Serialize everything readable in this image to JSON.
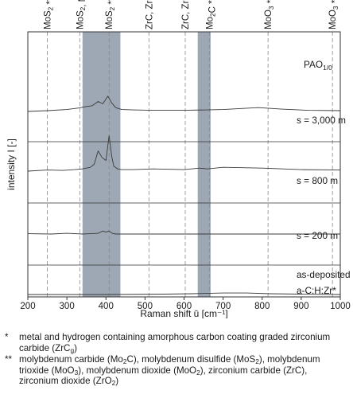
{
  "chart_data": {
    "type": "line",
    "xlabel": "Raman shift ū [cm⁻¹]",
    "ylabel": "intensity I [-]",
    "xlim": [
      200,
      1000
    ],
    "x_ticks": [
      200,
      300,
      400,
      500,
      600,
      700,
      800,
      900,
      1000
    ],
    "x_tick_labels": [
      "200",
      "300",
      "400",
      "500",
      "600",
      "700",
      "800",
      "900",
      "1000"
    ],
    "grid": false,
    "corner_label": "PAO",
    "corner_label_sub": "1/0",
    "shaded_bands": [
      {
        "x": [
          340,
          437
        ],
        "color": "#9ea8b4"
      },
      {
        "x": [
          635,
          668
        ],
        "color": "#9ea8b4"
      }
    ],
    "reference_lines": [
      {
        "x": 250,
        "label": "MoS₂ **"
      },
      {
        "x": 333,
        "label": "MoS₂, Mo₂C **"
      },
      {
        "x": 408,
        "label": "MoS₂ **"
      },
      {
        "x": 510,
        "label": "ZrC, ZrO₂ **"
      },
      {
        "x": 603,
        "label": "ZrC, ZrO₂ **"
      },
      {
        "x": 665,
        "label": "Mo₂C **"
      },
      {
        "x": 815,
        "label": "MoO₃ **"
      },
      {
        "x": 980,
        "label": "MoO₃ **"
      }
    ],
    "series": [
      {
        "name": "s = 3,000 m",
        "x": [
          200,
          250,
          300,
          330,
          350,
          365,
          380,
          392,
          405,
          415,
          425,
          440,
          470,
          520,
          600,
          700,
          790,
          850,
          920,
          1000
        ],
        "y": [
          0.0,
          0.02,
          0.05,
          0.09,
          0.13,
          0.15,
          0.26,
          0.2,
          0.4,
          0.22,
          0.1,
          0.05,
          0.04,
          0.03,
          0.03,
          0.05,
          0.1,
          0.06,
          0.03,
          0.02
        ]
      },
      {
        "name": "s = 800 m",
        "x": [
          200,
          250,
          290,
          320,
          340,
          360,
          370,
          380,
          390,
          400,
          408,
          415,
          420,
          430,
          440,
          470,
          520,
          600,
          640,
          660,
          700,
          800,
          900,
          1000
        ],
        "y": [
          0.02,
          0.05,
          0.04,
          0.06,
          0.08,
          0.12,
          0.2,
          0.55,
          0.38,
          0.3,
          0.95,
          0.4,
          0.15,
          0.08,
          0.06,
          0.06,
          0.08,
          0.06,
          0.1,
          0.08,
          0.12,
          0.1,
          0.06,
          0.05
        ]
      },
      {
        "name": "s = 200 m",
        "x": [
          200,
          260,
          300,
          340,
          360,
          380,
          392,
          400,
          408,
          416,
          425,
          440,
          500,
          600,
          700,
          800,
          900,
          1000
        ],
        "y": [
          0.03,
          0.02,
          0.04,
          0.02,
          0.03,
          0.04,
          0.1,
          0.07,
          0.1,
          0.04,
          0.02,
          0.02,
          0.02,
          0.02,
          0.02,
          0.02,
          0.02,
          0.02
        ]
      },
      {
        "name": "as-deposited",
        "subname": "a-C:H:Zr*",
        "x": [
          200,
          400,
          550,
          620,
          700,
          760,
          820,
          900,
          1000
        ],
        "y": [
          0.0,
          0.0,
          0.01,
          0.02,
          0.04,
          0.04,
          0.02,
          0.01,
          0.0
        ]
      }
    ]
  },
  "footnotes": [
    {
      "mark": "*",
      "html": "metal and hydrogen containing amorphous carbon coating graded zirconium carbide (ZrC<sub>g</sub>)"
    },
    {
      "mark": "**",
      "html": "molybdenum carbide (Mo<sub>2</sub>C), molybdenum disulfide (MoS<sub>2</sub>), molybdenum trioxide (MoO<sub>3</sub>), molybdenum dioxide (MoO<sub>2</sub>), zirconium carbide (ZrC), zirconium dioxide (ZrO<sub>2</sub>)"
    }
  ]
}
